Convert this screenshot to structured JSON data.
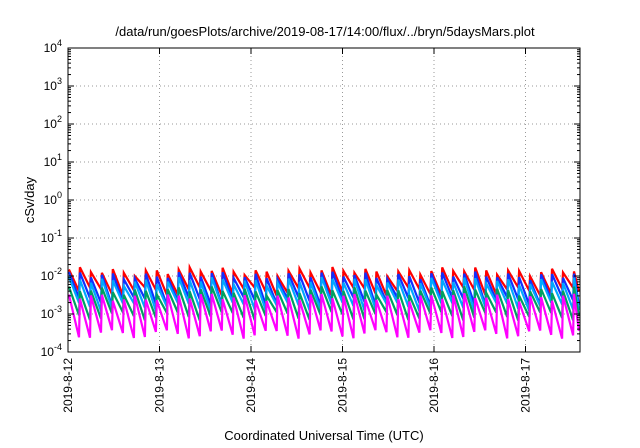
{
  "chart_data": {
    "type": "line",
    "title": "/data/run/goesPlots/archive/2019-08-17/14:00/flux/../bryn/5daysMars.plot",
    "xlabel": "Coordinated Universal Time (UTC)",
    "ylabel": "cSv/day",
    "y_scale": "log",
    "ylim": [
      0.0001,
      10000
    ],
    "y_ticks": [
      {
        "value": 0.0001,
        "base": "10",
        "exp": "-4"
      },
      {
        "value": 0.001,
        "base": "10",
        "exp": "-3"
      },
      {
        "value": 0.01,
        "base": "10",
        "exp": "-2"
      },
      {
        "value": 0.1,
        "base": "10",
        "exp": "-1"
      },
      {
        "value": 1,
        "base": "10",
        "exp": "0"
      },
      {
        "value": 10,
        "base": "10",
        "exp": "1"
      },
      {
        "value": 100,
        "base": "10",
        "exp": "2"
      },
      {
        "value": 1000,
        "base": "10",
        "exp": "3"
      },
      {
        "value": 10000,
        "base": "10",
        "exp": "4"
      }
    ],
    "x_ticks": [
      "2019-8-12",
      "2019-8-13",
      "2019-8-14",
      "2019-8-15",
      "2019-8-16",
      "2019-8-17"
    ],
    "xlim": [
      "2019-08-12 00:00",
      "2019-08-17 14:00"
    ],
    "grid": true,
    "grid_style": "dotted",
    "colors": {
      "red": "#ff0000",
      "blue": "#1030ff",
      "cyan": "#00a8ff",
      "green": "#00a060",
      "magenta": "#ff00ff"
    },
    "series": [
      {
        "color": "#ff0000",
        "peak": 0.0135,
        "trough": 0.004
      },
      {
        "color": "#1030ff",
        "peak": 0.0105,
        "trough": 0.0022
      },
      {
        "color": "#00a8ff",
        "peak": 0.0075,
        "trough": 0.0016
      },
      {
        "color": "#00a060",
        "peak": 0.0042,
        "trough": 0.0009
      },
      {
        "color": "#ff00ff",
        "peak": 0.0028,
        "trough": 0.0003
      }
    ]
  }
}
